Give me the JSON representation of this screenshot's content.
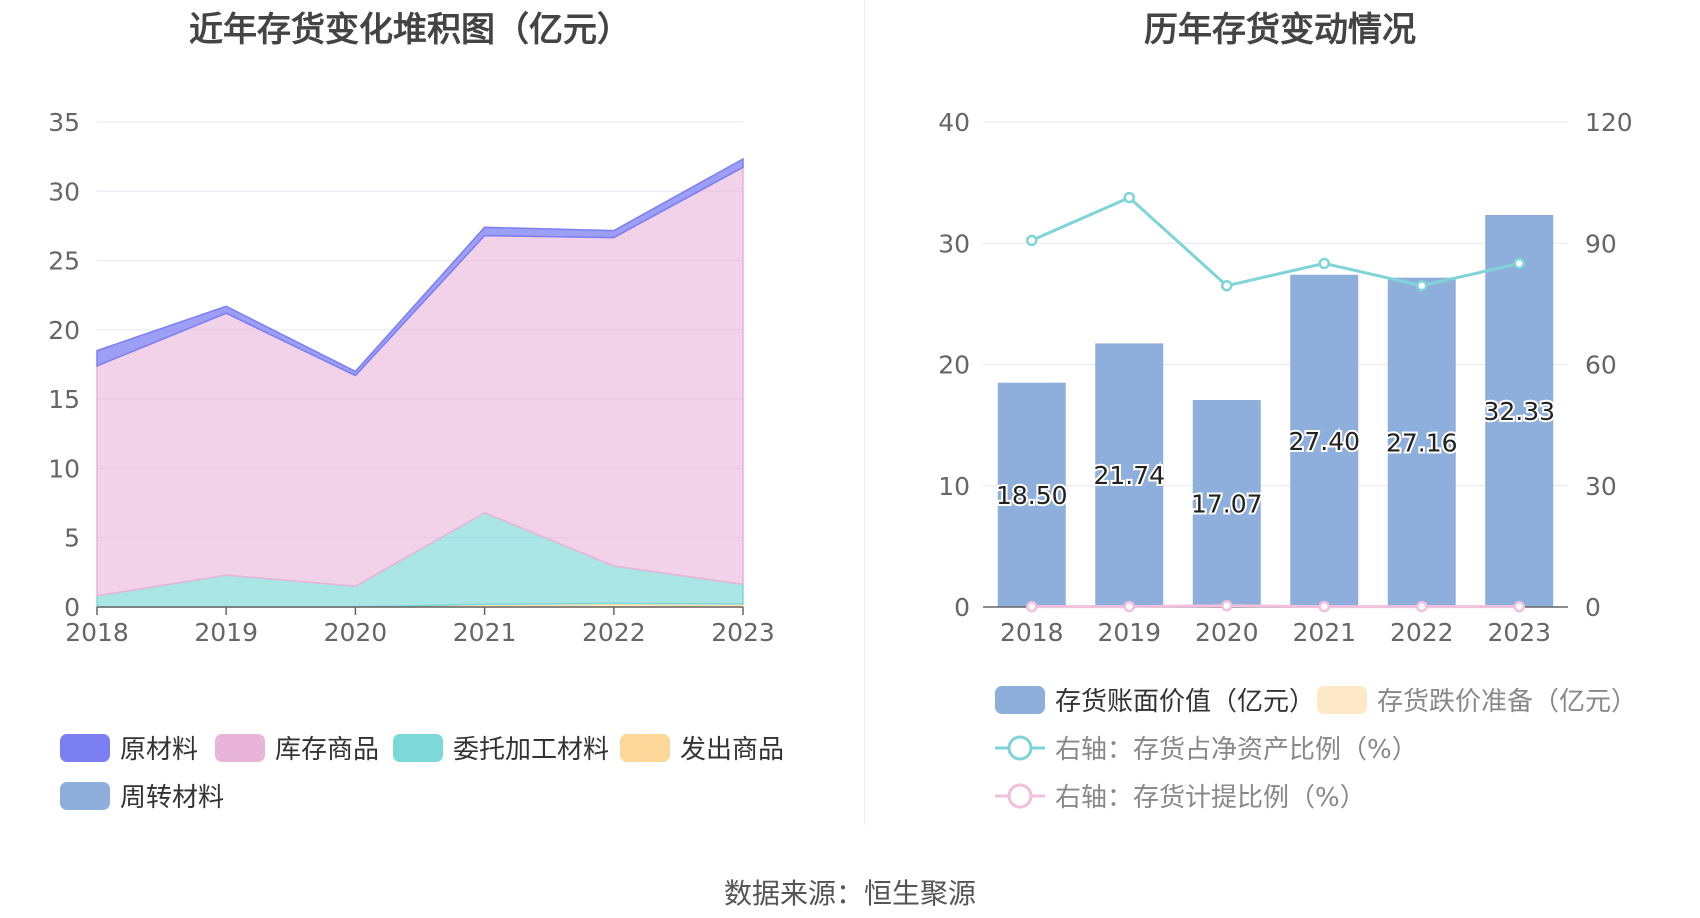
{
  "chart_data": [
    {
      "type": "area",
      "title": "近年存货变化堆积图（亿元）",
      "categories": [
        "2018",
        "2019",
        "2020",
        "2021",
        "2022",
        "2023"
      ],
      "ylim": [
        0,
        35
      ],
      "yticks": [
        0,
        5,
        10,
        15,
        20,
        25,
        30,
        35
      ],
      "stacked": true,
      "grid": true,
      "legend_position": "bottom",
      "series": [
        {
          "name": "原材料",
          "color": "#7b7ff2",
          "values": [
            1.1,
            0.5,
            0.3,
            0.6,
            0.5,
            0.6
          ]
        },
        {
          "name": "库存商品",
          "color": "#e8b4d8",
          "values": [
            16.6,
            18.9,
            15.2,
            20.0,
            23.7,
            30.1
          ]
        },
        {
          "name": "委托加工材料",
          "color": "#7dd8d8",
          "values": [
            0.8,
            2.3,
            1.5,
            6.6,
            2.7,
            1.4
          ]
        },
        {
          "name": "发出商品",
          "color": "#fdd89a",
          "values": [
            0.0,
            0.0,
            0.0,
            0.2,
            0.26,
            0.23
          ]
        },
        {
          "name": "周转材料",
          "color": "#8eaedc",
          "values": [
            0.0,
            0.0,
            0.0,
            0.0,
            0.0,
            0.0
          ]
        }
      ]
    },
    {
      "type": "bar",
      "title": "历年存货变动情况",
      "categories": [
        "2018",
        "2019",
        "2020",
        "2021",
        "2022",
        "2023"
      ],
      "ylim": [
        0,
        40
      ],
      "yticks": [
        0,
        10,
        20,
        30,
        40
      ],
      "y2lim": [
        0,
        120
      ],
      "y2ticks": [
        0,
        30,
        60,
        90,
        120
      ],
      "grid": true,
      "legend_position": "bottom",
      "bar_series": [
        {
          "name": "存货账面价值（亿元）",
          "color": "#8eaedc",
          "values": [
            18.5,
            21.74,
            17.07,
            27.4,
            27.16,
            32.33
          ],
          "labels": [
            "18.50",
            "21.74",
            "17.07",
            "27.40",
            "27.16",
            "32.33"
          ]
        },
        {
          "name": "存货跌价准备（亿元）",
          "color": "#fde8c8",
          "values": [
            0,
            0,
            0,
            0,
            0,
            0
          ]
        }
      ],
      "line_series": [
        {
          "name": "右轴：存货占净资产比例（%）",
          "color": "#7fd4d8",
          "axis": "right",
          "values": [
            90.7,
            101.3,
            79.5,
            85.0,
            79.5,
            85.0
          ]
        },
        {
          "name": "右轴：存货计提比例（%）",
          "color": "#f0c0dc",
          "axis": "right",
          "values": [
            0.1,
            0.1,
            0.3,
            0.1,
            0.1,
            0.1
          ]
        }
      ]
    }
  ],
  "footer": {
    "source": "数据来源：恒生聚源"
  }
}
